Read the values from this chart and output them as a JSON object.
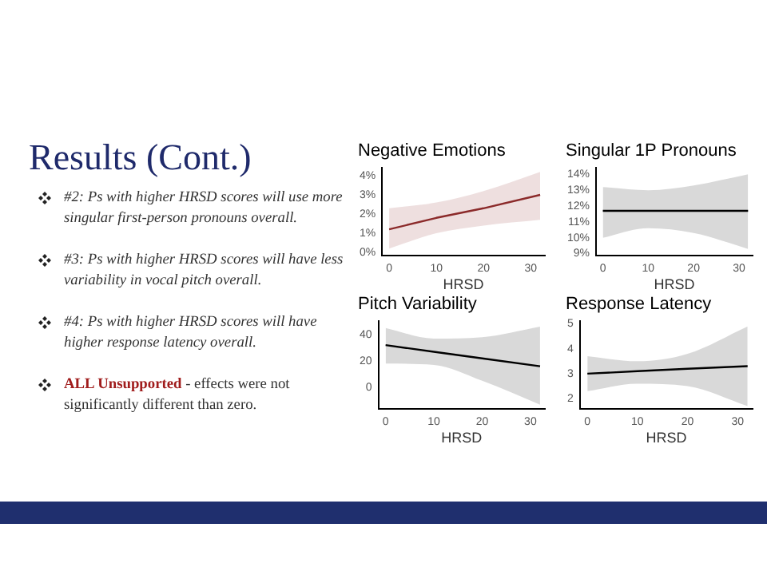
{
  "chart_data": [
    {
      "type": "other",
      "title": "Results (Cont.)",
      "annotations": [
        "#2: Ps with higher HRSD scores will use more singular first-person pronouns overall.",
        "#3: Ps with higher HRSD scores will have less variability in vocal pitch overall.",
        "#4: Ps with higher HRSD scores will have higher response latency overall.",
        "ALL Unsupported",
        "- effects were not significantly different than zero."
      ]
    },
    {
      "type": "line",
      "title": "Negative Emotions",
      "xlabel": "HRSD",
      "x": [
        0,
        10,
        20,
        32
      ],
      "xlim": [
        -1.5,
        33
      ],
      "xticks": [
        0,
        10,
        20,
        30
      ],
      "ylim": [
        -0.15,
        4.4
      ],
      "yticks": [
        {
          "value": 0,
          "label": "0%"
        },
        {
          "value": 1,
          "label": "1%"
        },
        {
          "value": 2,
          "label": "2%"
        },
        {
          "value": 3,
          "label": "3%"
        },
        {
          "value": 4,
          "label": "4%"
        }
      ],
      "series": [
        {
          "color": "#8b2a2a",
          "values": [
            1.2,
            1.8,
            2.3,
            3.0
          ],
          "lower": [
            0.2,
            1.0,
            1.4,
            1.7
          ],
          "upper": [
            2.3,
            2.6,
            3.2,
            4.2
          ]
        }
      ]
    },
    {
      "type": "line",
      "title": "Singular 1P Pronouns",
      "xlabel": "HRSD",
      "x": [
        0,
        10,
        20,
        32
      ],
      "xlim": [
        -1.5,
        33
      ],
      "xticks": [
        0,
        10,
        20,
        30
      ],
      "ylim": [
        8.9,
        14.4
      ],
      "yticks": [
        {
          "value": 9,
          "label": "9%"
        },
        {
          "value": 10,
          "label": "10%"
        },
        {
          "value": 11,
          "label": "11%"
        },
        {
          "value": 12,
          "label": "12%"
        },
        {
          "value": 13,
          "label": "13%"
        },
        {
          "value": 14,
          "label": "14%"
        }
      ],
      "series": [
        {
          "color": "#000000",
          "values": [
            11.7,
            11.7,
            11.7,
            11.7
          ],
          "lower": [
            10.0,
            10.6,
            10.3,
            9.3
          ],
          "upper": [
            13.2,
            13.0,
            13.3,
            14.0
          ]
        }
      ]
    },
    {
      "type": "line",
      "title": "Pitch Variability",
      "xlabel": "HRSD",
      "x": [
        0,
        10,
        20,
        32
      ],
      "xlim": [
        -1.5,
        33
      ],
      "xticks": [
        0,
        10,
        20,
        30
      ],
      "ylim": [
        -16,
        50
      ],
      "yticks": [
        0,
        20,
        40
      ],
      "series": [
        {
          "color": "#000000",
          "values": [
            32,
            27,
            22,
            16
          ],
          "lower": [
            18,
            17,
            5,
            -13
          ],
          "upper": [
            45,
            37,
            38,
            46
          ]
        }
      ]
    },
    {
      "type": "line",
      "title": "Response Latency",
      "xlabel": "HRSD",
      "x": [
        0,
        10,
        20,
        32
      ],
      "xlim": [
        -1.5,
        33
      ],
      "xticks": [
        0,
        10,
        20,
        30
      ],
      "ylim": [
        1.6,
        5.1
      ],
      "yticks": [
        2,
        3,
        4,
        5
      ],
      "series": [
        {
          "color": "#000000",
          "values": [
            3.0,
            3.1,
            3.2,
            3.3
          ],
          "lower": [
            2.3,
            2.6,
            2.5,
            1.7
          ],
          "upper": [
            3.7,
            3.5,
            3.8,
            4.9
          ]
        }
      ]
    }
  ]
}
